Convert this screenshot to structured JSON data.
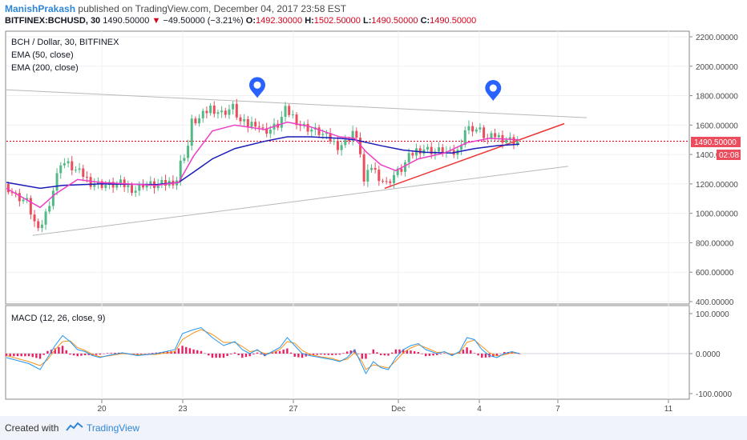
{
  "header": {
    "author": "ManishPrakash",
    "published": "published on TradingView.com, December 04, 2017 23:58 EST",
    "symbol": "BITFINEX:BCHUSD, 30",
    "last": "1490.50000",
    "change": "−49.50000 (−3.21%)",
    "open_label": "O:",
    "open": "1492.30000",
    "high_label": "H:",
    "high": "1502.50000",
    "low_label": "L:",
    "low": "1490.50000",
    "close_label": "C:",
    "close": "1490.50000"
  },
  "legend": {
    "title": "BCH / Dollar, 30, BITFINEX",
    "ema50": "EMA (50, close)",
    "ema200": "EMA (200, close)",
    "macd": "MACD (12, 26, close, 9)"
  },
  "price_badge": {
    "value": "1490.50000",
    "countdown": "02:08"
  },
  "footer": {
    "created": "Created with",
    "brand": "TradingView"
  },
  "colors": {
    "up": "#53b987",
    "down": "#eb4d5c",
    "ema50": "#ee3ec8",
    "ema200": "#1a1ab8",
    "trendline_red": "#ee3333",
    "trendline_gray": "#b8b8b8",
    "macd": "#2196f3",
    "signal": "#f7931a",
    "hist": "#e91e63",
    "marker": "#2962ff",
    "price_line": "#d0021b"
  },
  "chart_data": [
    {
      "type": "candlestick",
      "title": "BCH / Dollar, 30, BITFINEX",
      "x_ticks": [
        "20",
        "23",
        "27",
        "Dec",
        "4",
        "7",
        "11"
      ],
      "y_ticks": [
        "2200.00000",
        "2000.00000",
        "1800.00000",
        "1600.00000",
        "1400.00000",
        "1200.00000",
        "1000.00000",
        "800.00000",
        "600.00000",
        "400.00000"
      ],
      "ylim": [
        400,
        2200
      ],
      "last_price": 1490.5,
      "series_price": [
        [
          0,
          1200
        ],
        [
          3,
          1120
        ],
        [
          6,
          1080
        ],
        [
          9,
          870
        ],
        [
          11,
          1000
        ],
        [
          13,
          1160
        ],
        [
          15,
          1350
        ],
        [
          17,
          1330
        ],
        [
          19,
          1290
        ],
        [
          21,
          1260
        ],
        [
          23,
          1210
        ],
        [
          25,
          1200
        ],
        [
          28,
          1190
        ],
        [
          31,
          1200
        ],
        [
          33,
          1180
        ],
        [
          35,
          1160
        ],
        [
          37,
          1200
        ],
        [
          40,
          1190
        ],
        [
          43,
          1200
        ],
        [
          46,
          1230
        ],
        [
          47,
          1340
        ],
        [
          49,
          1460
        ],
        [
          50,
          1620
        ],
        [
          52,
          1640
        ],
        [
          55,
          1720
        ],
        [
          58,
          1680
        ],
        [
          61,
          1720
        ],
        [
          63,
          1620
        ],
        [
          65,
          1600
        ],
        [
          67,
          1620
        ],
        [
          69,
          1560
        ],
        [
          71,
          1570
        ],
        [
          73,
          1600
        ],
        [
          75,
          1700
        ],
        [
          77,
          1660
        ],
        [
          79,
          1600
        ],
        [
          81,
          1580
        ],
        [
          84,
          1550
        ],
        [
          87,
          1500
        ],
        [
          89,
          1460
        ],
        [
          91,
          1480
        ],
        [
          93,
          1560
        ],
        [
          95,
          1420
        ],
        [
          96,
          1210
        ],
        [
          98,
          1320
        ],
        [
          100,
          1250
        ],
        [
          102,
          1200
        ],
        [
          104,
          1260
        ],
        [
          106,
          1300
        ],
        [
          108,
          1380
        ],
        [
          110,
          1430
        ],
        [
          112,
          1440
        ],
        [
          115,
          1420
        ],
        [
          117,
          1430
        ],
        [
          119,
          1400
        ],
        [
          121,
          1420
        ],
        [
          123,
          1570
        ],
        [
          125,
          1580
        ],
        [
          127,
          1560
        ],
        [
          129,
          1500
        ],
        [
          131,
          1530
        ],
        [
          133,
          1510
        ],
        [
          135,
          1500
        ],
        [
          137,
          1490.5
        ]
      ],
      "series_ema50": [
        [
          0,
          1170
        ],
        [
          9,
          1040
        ],
        [
          13,
          1130
        ],
        [
          19,
          1230
        ],
        [
          25,
          1210
        ],
        [
          40,
          1190
        ],
        [
          46,
          1210
        ],
        [
          50,
          1390
        ],
        [
          55,
          1560
        ],
        [
          61,
          1600
        ],
        [
          69,
          1570
        ],
        [
          75,
          1620
        ],
        [
          81,
          1590
        ],
        [
          89,
          1520
        ],
        [
          93,
          1510
        ],
        [
          96,
          1420
        ],
        [
          100,
          1330
        ],
        [
          104,
          1290
        ],
        [
          110,
          1370
        ],
        [
          117,
          1410
        ],
        [
          123,
          1480
        ],
        [
          129,
          1510
        ],
        [
          137,
          1500
        ]
      ],
      "series_ema200": [
        [
          0,
          1210
        ],
        [
          9,
          1170
        ],
        [
          15,
          1190
        ],
        [
          25,
          1200
        ],
        [
          40,
          1195
        ],
        [
          46,
          1210
        ],
        [
          50,
          1280
        ],
        [
          55,
          1370
        ],
        [
          61,
          1440
        ],
        [
          69,
          1490
        ],
        [
          75,
          1520
        ],
        [
          81,
          1520
        ],
        [
          89,
          1510
        ],
        [
          93,
          1500
        ],
        [
          100,
          1460
        ],
        [
          106,
          1430
        ],
        [
          112,
          1415
        ],
        [
          119,
          1410
        ],
        [
          125,
          1440
        ],
        [
          131,
          1460
        ],
        [
          137,
          1470
        ]
      ],
      "lines": [
        {
          "name": "upper",
          "from": [
            0,
            1840
          ],
          "to": [
            155,
            1650
          ]
        },
        {
          "name": "lower",
          "from": [
            7,
            850
          ],
          "to": [
            150,
            1320
          ]
        },
        {
          "name": "support",
          "from": [
            101,
            1170
          ],
          "to": [
            149,
            1610
          ]
        }
      ],
      "markers": [
        [
          67,
          1850
        ],
        [
          130,
          1830
        ]
      ]
    },
    {
      "type": "line",
      "title": "MACD (12, 26, close, 9)",
      "y_ticks": [
        "100.0000",
        "0.0000",
        "-100.0000"
      ],
      "ylim": [
        -110,
        110
      ],
      "macd": [
        [
          0,
          -10
        ],
        [
          6,
          -25
        ],
        [
          9,
          -40
        ],
        [
          11,
          -10
        ],
        [
          13,
          20
        ],
        [
          15,
          45
        ],
        [
          17,
          30
        ],
        [
          19,
          10
        ],
        [
          21,
          5
        ],
        [
          23,
          -5
        ],
        [
          25,
          -10
        ],
        [
          27,
          -5
        ],
        [
          31,
          2
        ],
        [
          35,
          -5
        ],
        [
          40,
          0
        ],
        [
          45,
          10
        ],
        [
          47,
          50
        ],
        [
          50,
          60
        ],
        [
          52,
          65
        ],
        [
          55,
          40
        ],
        [
          58,
          20
        ],
        [
          61,
          30
        ],
        [
          63,
          10
        ],
        [
          65,
          0
        ],
        [
          67,
          10
        ],
        [
          69,
          -5
        ],
        [
          71,
          5
        ],
        [
          73,
          15
        ],
        [
          75,
          40
        ],
        [
          77,
          20
        ],
        [
          79,
          0
        ],
        [
          81,
          -5
        ],
        [
          84,
          -10
        ],
        [
          87,
          -15
        ],
        [
          89,
          -20
        ],
        [
          91,
          -10
        ],
        [
          93,
          10
        ],
        [
          95,
          -30
        ],
        [
          96,
          -50
        ],
        [
          98,
          -20
        ],
        [
          100,
          -35
        ],
        [
          102,
          -40
        ],
        [
          104,
          -10
        ],
        [
          106,
          10
        ],
        [
          108,
          20
        ],
        [
          110,
          25
        ],
        [
          112,
          10
        ],
        [
          115,
          0
        ],
        [
          117,
          5
        ],
        [
          119,
          -5
        ],
        [
          121,
          5
        ],
        [
          123,
          40
        ],
        [
          125,
          35
        ],
        [
          127,
          10
        ],
        [
          129,
          -5
        ],
        [
          131,
          -10
        ],
        [
          133,
          0
        ],
        [
          135,
          5
        ],
        [
          137,
          0
        ]
      ],
      "signal": [
        [
          0,
          -5
        ],
        [
          6,
          -20
        ],
        [
          9,
          -30
        ],
        [
          11,
          -15
        ],
        [
          13,
          10
        ],
        [
          15,
          30
        ],
        [
          17,
          32
        ],
        [
          19,
          15
        ],
        [
          21,
          8
        ],
        [
          23,
          -2
        ],
        [
          25,
          -8
        ],
        [
          27,
          -6
        ],
        [
          31,
          0
        ],
        [
          35,
          -3
        ],
        [
          40,
          -2
        ],
        [
          45,
          5
        ],
        [
          47,
          35
        ],
        [
          50,
          52
        ],
        [
          52,
          60
        ],
        [
          55,
          48
        ],
        [
          58,
          28
        ],
        [
          61,
          28
        ],
        [
          63,
          18
        ],
        [
          65,
          5
        ],
        [
          67,
          8
        ],
        [
          69,
          0
        ],
        [
          71,
          2
        ],
        [
          73,
          10
        ],
        [
          75,
          30
        ],
        [
          77,
          26
        ],
        [
          79,
          8
        ],
        [
          81,
          -2
        ],
        [
          84,
          -8
        ],
        [
          87,
          -12
        ],
        [
          89,
          -18
        ],
        [
          91,
          -14
        ],
        [
          93,
          2
        ],
        [
          95,
          -20
        ],
        [
          96,
          -40
        ],
        [
          98,
          -28
        ],
        [
          100,
          -32
        ],
        [
          102,
          -36
        ],
        [
          104,
          -18
        ],
        [
          106,
          2
        ],
        [
          108,
          14
        ],
        [
          110,
          22
        ],
        [
          112,
          15
        ],
        [
          115,
          3
        ],
        [
          117,
          4
        ],
        [
          119,
          -2
        ],
        [
          121,
          2
        ],
        [
          123,
          28
        ],
        [
          125,
          34
        ],
        [
          127,
          18
        ],
        [
          129,
          2
        ],
        [
          131,
          -6
        ],
        [
          133,
          -3
        ],
        [
          135,
          2
        ],
        [
          137,
          1
        ]
      ]
    }
  ]
}
